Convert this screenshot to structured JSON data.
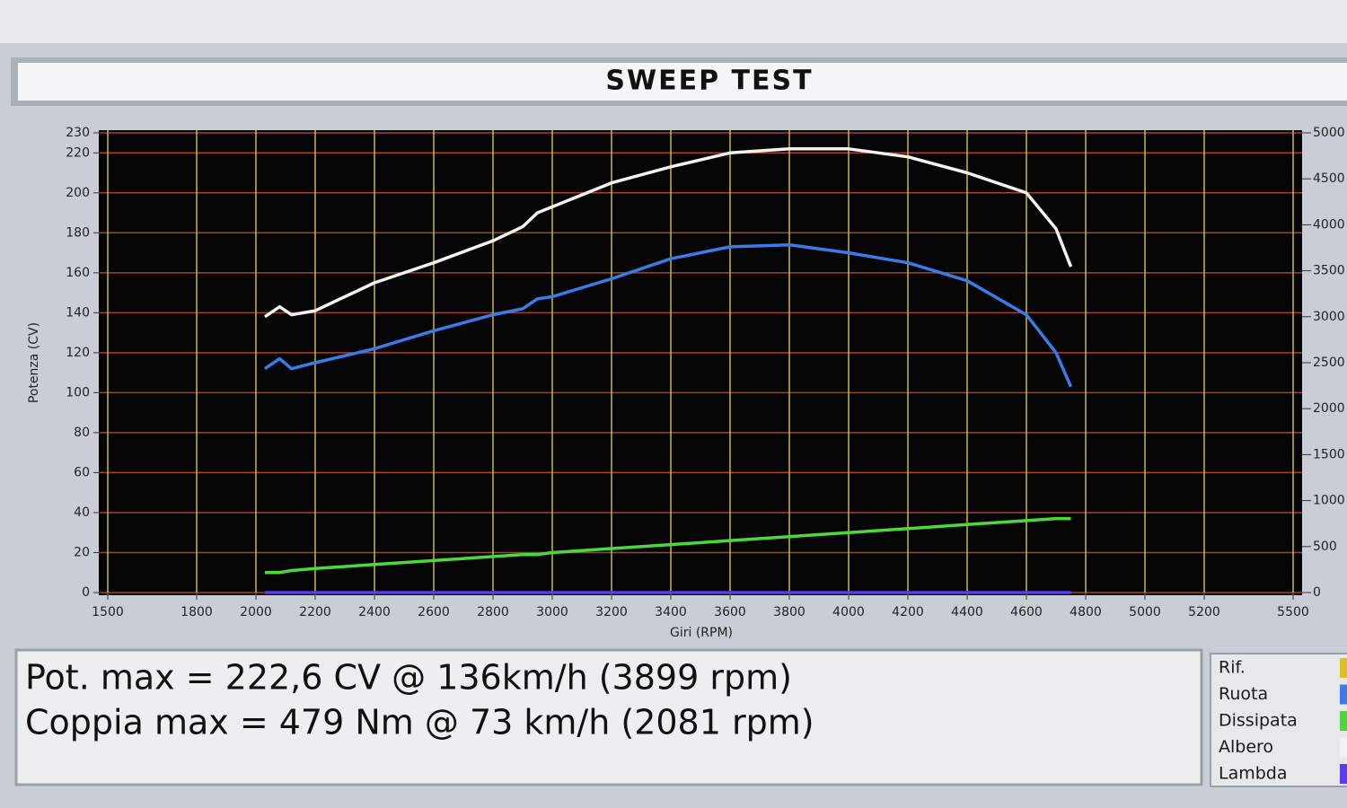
{
  "chart_data": {
    "type": "line",
    "title": "SWEEP TEST",
    "y_label": "Potenza (CV)",
    "x_label": "Giri (RPM)",
    "x": [
      2030,
      2080,
      2120,
      2200,
      2400,
      2600,
      2800,
      2900,
      2950,
      3000,
      3200,
      3400,
      3600,
      3800,
      4000,
      4200,
      4400,
      4600,
      4700,
      4750
    ],
    "series": [
      {
        "name": "Ruota",
        "color": "#3a7be8",
        "values": [
          112,
          117,
          112,
          115,
          122,
          131,
          139,
          142,
          147,
          148,
          157,
          167,
          173,
          174,
          170,
          165,
          156,
          139,
          120,
          103
        ]
      },
      {
        "name": "Dissipata",
        "color": "#4cd83a",
        "values": [
          10,
          10,
          11,
          12,
          14,
          16,
          18,
          19,
          19,
          20,
          22,
          24,
          26,
          28,
          30,
          32,
          34,
          36,
          37,
          37
        ]
      },
      {
        "name": "Albero",
        "color": "#f2f2f2",
        "values": [
          138,
          143,
          139,
          141,
          155,
          165,
          176,
          183,
          190,
          193,
          205,
          213,
          220,
          222,
          222,
          218,
          210,
          200,
          182,
          163
        ]
      },
      {
        "name": "Lambda",
        "color": "#5a3cf0",
        "values": [
          0,
          0,
          0,
          0,
          0,
          0,
          0,
          0,
          0,
          0,
          0,
          0,
          0,
          0,
          0,
          0,
          0,
          0,
          0,
          0
        ]
      }
    ],
    "reference": {
      "name": "Rif.",
      "color": "#e0c020"
    },
    "xlim": [
      1500,
      5500
    ],
    "xticks": [
      1500,
      1800,
      2000,
      2200,
      2400,
      2600,
      2800,
      3000,
      3200,
      3400,
      3600,
      3800,
      4000,
      4200,
      4400,
      4600,
      4800,
      5000,
      5200,
      5500
    ],
    "ylim": [
      0,
      230
    ],
    "yticks": [
      0,
      20,
      40,
      60,
      80,
      100,
      120,
      140,
      160,
      180,
      200,
      220,
      230
    ],
    "y2lim": [
      0,
      5000
    ],
    "y2ticks": [
      0,
      500,
      1000,
      1500,
      2000,
      2500,
      3000,
      3500,
      4000,
      4500,
      5000
    ],
    "grid": true
  },
  "results": [
    "Pot. max = 222,6 CV @ 136km/h (3899 rpm)",
    "Coppia max = 479 Nm @ 73 km/h (2081 rpm)"
  ]
}
